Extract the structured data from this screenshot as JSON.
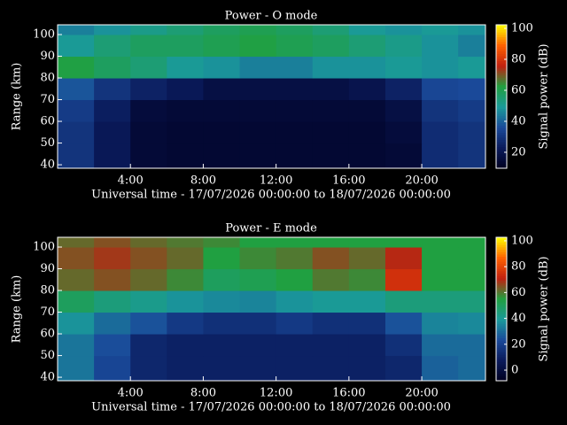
{
  "chart_data": [
    {
      "type": "heatmap",
      "title": "Power - O mode",
      "xlabel": "Universal time - 17/07/2026 00:00:00 to 18/07/2026 00:00:00",
      "ylabel": "Range (km)",
      "zlabel": "Signal power (dB)",
      "xbins": [
        0,
        2,
        4,
        6,
        8,
        10,
        12,
        14,
        16,
        18,
        20,
        22,
        23.5
      ],
      "ybins": [
        38.4,
        50,
        60,
        70,
        80,
        90,
        100,
        104.5
      ],
      "values": [
        [
          30,
          22,
          15,
          14,
          14,
          14,
          14,
          14,
          14,
          15,
          28,
          30
        ],
        [
          30,
          22,
          15,
          14,
          14,
          14,
          14,
          14,
          14,
          16,
          28,
          30
        ],
        [
          32,
          24,
          16,
          15,
          15,
          15,
          15,
          15,
          15,
          18,
          30,
          32
        ],
        [
          38,
          30,
          25,
          22,
          18,
          18,
          18,
          18,
          20,
          25,
          35,
          36
        ],
        [
          62,
          58,
          55,
          50,
          48,
          45,
          45,
          48,
          48,
          50,
          48,
          50
        ],
        [
          50,
          55,
          58,
          58,
          60,
          62,
          60,
          58,
          55,
          52,
          48,
          45
        ],
        [
          45,
          48,
          52,
          55,
          58,
          60,
          58,
          55,
          50,
          48,
          50,
          48
        ]
      ],
      "xlim": [
        0,
        23.5
      ],
      "ylim": [
        38.4,
        104.5
      ],
      "zlim": [
        9.7,
        102.3
      ],
      "xticks": [
        {
          "value": 4,
          "label": "4:00"
        },
        {
          "value": 8,
          "label": "8:00"
        },
        {
          "value": 12,
          "label": "12:00"
        },
        {
          "value": 16,
          "label": "16:00"
        },
        {
          "value": 20,
          "label": "20:00"
        }
      ],
      "yticks": [
        40,
        50,
        60,
        70,
        80,
        90,
        100
      ],
      "zticks": [
        20,
        40,
        60,
        80,
        100
      ],
      "colormap": [
        "#000020",
        "#0a1a5a",
        "#1a4a9a",
        "#1a9a9a",
        "#20a040",
        "#c02010",
        "#ff6000",
        "#ffff00"
      ]
    },
    {
      "type": "heatmap",
      "title": "Power - E mode",
      "xlabel": "Universal time - 17/07/2026 00:00:00 to 18/07/2026 00:00:00",
      "ylabel": "Range (km)",
      "zlabel": "Signal power (dB)",
      "xbins": [
        0,
        2,
        4,
        6,
        8,
        10,
        12,
        14,
        16,
        18,
        20,
        22,
        23.5
      ],
      "ybins": [
        38.4,
        50,
        60,
        70,
        80,
        90,
        100,
        104.5
      ],
      "values": [
        [
          32,
          22,
          12,
          10,
          10,
          10,
          10,
          10,
          10,
          12,
          28,
          30
        ],
        [
          32,
          24,
          12,
          10,
          10,
          10,
          10,
          10,
          10,
          15,
          30,
          30
        ],
        [
          38,
          30,
          25,
          18,
          15,
          15,
          18,
          15,
          15,
          25,
          35,
          36
        ],
        [
          50,
          45,
          42,
          38,
          36,
          35,
          38,
          40,
          40,
          45,
          45,
          45
        ],
        [
          62,
          65,
          62,
          58,
          50,
          52,
          55,
          60,
          58,
          75,
          55,
          55
        ],
        [
          65,
          68,
          65,
          62,
          55,
          58,
          60,
          65,
          62,
          70,
          55,
          55
        ],
        [
          62,
          65,
          62,
          60,
          58,
          55,
          55,
          55,
          55,
          55,
          55,
          55
        ]
      ],
      "xlim": [
        0,
        23.5
      ],
      "ylim": [
        38.4,
        104.5
      ],
      "zlim": [
        -8.2,
        102.7
      ],
      "xticks": [
        {
          "value": 4,
          "label": "4:00"
        },
        {
          "value": 8,
          "label": "8:00"
        },
        {
          "value": 12,
          "label": "12:00"
        },
        {
          "value": 16,
          "label": "16:00"
        },
        {
          "value": 20,
          "label": "20:00"
        }
      ],
      "yticks": [
        40,
        50,
        60,
        70,
        80,
        90,
        100
      ],
      "zticks": [
        0,
        20,
        40,
        60,
        80,
        100
      ],
      "colormap": [
        "#000020",
        "#0a1a5a",
        "#1a4a9a",
        "#1a9a9a",
        "#20a040",
        "#c02010",
        "#ff6000",
        "#ffff00"
      ]
    }
  ]
}
